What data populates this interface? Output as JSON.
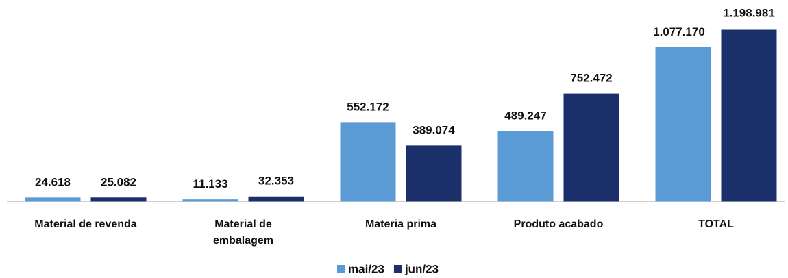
{
  "chart_data": {
    "type": "bar",
    "categories": [
      "Material de revenda",
      "Material de embalagem",
      "Materia prima",
      "Produto acabado",
      "TOTAL"
    ],
    "series": [
      {
        "name": "mai/23",
        "color": "#5b9bd5",
        "values": [
          24618,
          11133,
          552172,
          489247,
          1077170
        ],
        "value_labels": [
          "24.618",
          "11.133",
          "552.172",
          "489.247",
          "1.077.170"
        ]
      },
      {
        "name": "jun/23",
        "color": "#1b2f6b",
        "values": [
          25082,
          32353,
          389074,
          752472,
          1198981
        ],
        "value_labels": [
          "25.082",
          "32.353",
          "389.074",
          "752.472",
          "1.198.981"
        ]
      }
    ],
    "legend": "bottom"
  }
}
